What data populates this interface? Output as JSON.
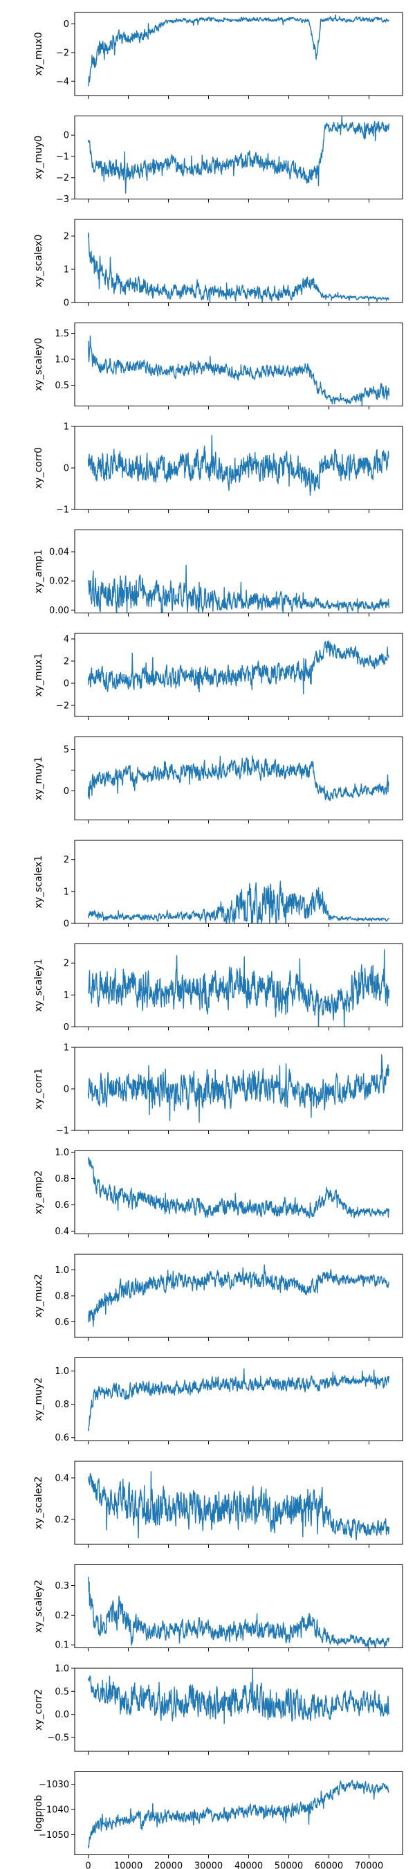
{
  "chart_data": {
    "type": "line",
    "layout": "vertical-stack",
    "shared_x": true,
    "line_color": "#1f77b4",
    "grid": false,
    "legend": "none",
    "x_range": [
      0,
      75000
    ],
    "x_ticks": [
      0,
      10000,
      20000,
      30000,
      40000,
      50000,
      60000,
      70000
    ],
    "x_tick_labels": [
      "0",
      "10000",
      "20000",
      "30000",
      "40000",
      "50000",
      "60000",
      "70000"
    ],
    "panels": [
      {
        "ylabel": "xy_mux0",
        "ylim": [
          -5,
          0.8
        ],
        "yticks": [
          -4,
          -2,
          0
        ],
        "ytick_labels": [
          "−4",
          "−2",
          "0"
        ],
        "x": [
          0,
          1000,
          3000,
          6000,
          10000,
          15000,
          20000,
          30000,
          40000,
          50000,
          55000,
          57000,
          58000,
          60000,
          65000,
          70000,
          75000
        ],
        "values": [
          -4.5,
          -2.5,
          -1.8,
          -1.2,
          -1.0,
          -0.6,
          0.2,
          0.3,
          0.3,
          0.3,
          0.2,
          -2.5,
          0.3,
          0.3,
          0.3,
          0.3,
          0.3
        ],
        "noise": [
          0.8,
          0.8,
          0.7,
          0.6,
          0.5,
          0.4,
          0.15,
          0.15,
          0.15,
          0.15,
          0.15,
          0.6,
          0.15,
          0.15,
          0.15,
          0.15,
          0.15
        ]
      },
      {
        "ylabel": "xy_muy0",
        "ylim": [
          -3,
          0.9
        ],
        "yticks": [
          -3,
          -2,
          -1,
          0
        ],
        "ytick_labels": [
          "−3",
          "−2",
          "−1",
          "0"
        ],
        "x": [
          0,
          2000,
          10000,
          20000,
          30000,
          40000,
          50000,
          56000,
          58000,
          59000,
          65000,
          70000,
          75000
        ],
        "values": [
          -0.5,
          -1.6,
          -1.7,
          -1.4,
          -1.5,
          -1.2,
          -1.6,
          -2.0,
          -1.5,
          0.4,
          0.4,
          0.3,
          0.4
        ],
        "noise": [
          0.6,
          0.4,
          0.4,
          0.4,
          0.4,
          0.4,
          0.4,
          0.4,
          0.4,
          0.2,
          0.2,
          0.4,
          0.3
        ]
      },
      {
        "ylabel": "xy_scalex0",
        "ylim": [
          0,
          2.5
        ],
        "yticks": [
          0,
          1,
          2
        ],
        "ytick_labels": [
          "0",
          "1",
          "2"
        ],
        "x": [
          0,
          1000,
          5000,
          10000,
          20000,
          30000,
          40000,
          50000,
          56000,
          58000,
          65000,
          75000
        ],
        "values": [
          1.8,
          1.2,
          0.7,
          0.5,
          0.35,
          0.3,
          0.3,
          0.3,
          0.6,
          0.2,
          0.15,
          0.12
        ],
        "noise": [
          0.4,
          0.3,
          0.3,
          0.25,
          0.2,
          0.2,
          0.2,
          0.2,
          0.25,
          0.08,
          0.05,
          0.05
        ]
      },
      {
        "ylabel": "xy_scaley0",
        "ylim": [
          0.1,
          1.7
        ],
        "yticks": [
          0.5,
          1.0,
          1.5
        ],
        "ytick_labels": [
          "0.5",
          "1.0",
          "1.5"
        ],
        "x": [
          0,
          2000,
          10000,
          20000,
          30000,
          40000,
          50000,
          55000,
          57000,
          60000,
          65000,
          70000,
          75000
        ],
        "values": [
          1.2,
          0.9,
          0.85,
          0.8,
          0.8,
          0.75,
          0.8,
          0.8,
          0.45,
          0.25,
          0.2,
          0.3,
          0.4
        ],
        "noise": [
          0.3,
          0.15,
          0.12,
          0.12,
          0.12,
          0.12,
          0.12,
          0.12,
          0.1,
          0.06,
          0.05,
          0.15,
          0.2
        ]
      },
      {
        "ylabel": "xy_corr0",
        "ylim": [
          -1,
          1
        ],
        "yticks": [
          -1,
          0,
          1
        ],
        "ytick_labels": [
          "−1",
          "0",
          "1"
        ],
        "x": [
          0,
          10000,
          20000,
          30000,
          35000,
          40000,
          50000,
          57000,
          60000,
          65000,
          70000,
          75000
        ],
        "values": [
          0.0,
          0.1,
          0.0,
          0.1,
          -0.2,
          0.1,
          0.0,
          -0.3,
          0.2,
          0.0,
          0.0,
          0.2
        ],
        "noise": [
          0.35,
          0.35,
          0.35,
          0.35,
          0.3,
          0.35,
          0.35,
          0.3,
          0.3,
          0.3,
          0.3,
          0.3
        ]
      },
      {
        "ylabel": "xy_amp1",
        "ylim": [
          -0.002,
          0.055
        ],
        "yticks": [
          0.0,
          0.02,
          0.04
        ],
        "ytick_labels": [
          "0.00",
          "0.02",
          "0.04"
        ],
        "x": [
          0,
          10000,
          20000,
          30000,
          40000,
          50000,
          60000,
          70000,
          75000
        ],
        "values": [
          0.012,
          0.012,
          0.01,
          0.008,
          0.006,
          0.005,
          0.003,
          0.003,
          0.004
        ],
        "noise": [
          0.012,
          0.012,
          0.01,
          0.008,
          0.006,
          0.005,
          0.003,
          0.003,
          0.004
        ]
      },
      {
        "ylabel": "xy_mux1",
        "ylim": [
          -3,
          4.5
        ],
        "yticks": [
          -2,
          0,
          2,
          4
        ],
        "ytick_labels": [
          "−2",
          "0",
          "2",
          "4"
        ],
        "x": [
          0,
          10000,
          20000,
          30000,
          40000,
          50000,
          55000,
          60000,
          63000,
          66000,
          70000,
          75000
        ],
        "values": [
          0.5,
          0.5,
          0.5,
          0.5,
          0.8,
          1.0,
          1.2,
          3.5,
          2.5,
          2.8,
          1.8,
          2.5
        ],
        "noise": [
          0.9,
          0.9,
          0.9,
          0.9,
          0.9,
          0.9,
          0.9,
          0.6,
          0.6,
          0.6,
          0.6,
          0.6
        ]
      },
      {
        "ylabel": "xy_muy1",
        "ylim": [
          -3.5,
          6.5
        ],
        "yticks": [
          0,
          2.5,
          5
        ],
        "ytick_labels": [
          "0",
          "",
          "5"
        ],
        "x": [
          0,
          2000,
          10000,
          20000,
          30000,
          40000,
          50000,
          56000,
          58000,
          62000,
          70000,
          75000
        ],
        "values": [
          0.0,
          1.0,
          2.0,
          2.3,
          2.5,
          2.8,
          2.6,
          2.5,
          -0.5,
          -0.2,
          0.0,
          0.3
        ],
        "noise": [
          1.2,
          1.0,
          1.0,
          1.0,
          1.0,
          1.1,
          1.0,
          1.0,
          0.8,
          0.6,
          0.6,
          0.7
        ]
      },
      {
        "ylabel": "xy_scalex1",
        "ylim": [
          0,
          2.6
        ],
        "yticks": [
          0,
          1,
          2
        ],
        "ytick_labels": [
          "0",
          "1",
          "2"
        ],
        "x": [
          0,
          5000,
          10000,
          20000,
          30000,
          35000,
          40000,
          45000,
          50000,
          55000,
          58000,
          60000,
          65000,
          75000
        ],
        "values": [
          0.3,
          0.2,
          0.2,
          0.2,
          0.25,
          0.4,
          0.6,
          0.7,
          0.5,
          0.4,
          0.8,
          0.2,
          0.15,
          0.12
        ],
        "noise": [
          0.15,
          0.1,
          0.1,
          0.1,
          0.15,
          0.4,
          0.6,
          0.7,
          0.5,
          0.4,
          0.5,
          0.1,
          0.05,
          0.05
        ]
      },
      {
        "ylabel": "xy_scaley1",
        "ylim": [
          0,
          2.6
        ],
        "yticks": [
          0,
          1,
          2
        ],
        "ytick_labels": [
          "0",
          "1",
          "2"
        ],
        "x": [
          0,
          10000,
          20000,
          30000,
          40000,
          50000,
          55000,
          60000,
          65000,
          70000,
          75000
        ],
        "values": [
          1.3,
          1.2,
          1.1,
          1.2,
          1.2,
          1.1,
          1.0,
          0.6,
          1.0,
          1.5,
          1.2
        ],
        "noise": [
          0.6,
          0.55,
          0.55,
          0.6,
          0.6,
          0.55,
          0.5,
          0.35,
          0.6,
          0.6,
          0.6
        ]
      },
      {
        "ylabel": "xy_corr1",
        "ylim": [
          -1,
          1
        ],
        "yticks": [
          -1,
          0,
          1
        ],
        "ytick_labels": [
          "−1",
          "0",
          "1"
        ],
        "x": [
          0,
          10000,
          20000,
          30000,
          40000,
          50000,
          57000,
          60000,
          65000,
          70000,
          75000
        ],
        "values": [
          0.0,
          0.0,
          0.05,
          0.0,
          0.05,
          0.0,
          -0.2,
          0.0,
          0.0,
          0.1,
          0.2
        ],
        "noise": [
          0.35,
          0.4,
          0.4,
          0.4,
          0.4,
          0.4,
          0.3,
          0.3,
          0.3,
          0.3,
          0.3
        ]
      },
      {
        "ylabel": "xy_amp2",
        "ylim": [
          0.38,
          1.01
        ],
        "yticks": [
          0.4,
          0.6,
          0.8,
          1.0
        ],
        "ytick_labels": [
          "0.4",
          "0.6",
          "0.8",
          "1.0"
        ],
        "x": [
          0,
          2000,
          5000,
          10000,
          20000,
          30000,
          40000,
          50000,
          56000,
          60000,
          65000,
          75000
        ],
        "values": [
          0.95,
          0.75,
          0.68,
          0.65,
          0.6,
          0.58,
          0.58,
          0.57,
          0.56,
          0.7,
          0.54,
          0.55
        ],
        "noise": [
          0.05,
          0.06,
          0.06,
          0.07,
          0.06,
          0.06,
          0.06,
          0.06,
          0.05,
          0.06,
          0.03,
          0.03
        ]
      },
      {
        "ylabel": "xy_mux2",
        "ylim": [
          0.48,
          1.12
        ],
        "yticks": [
          0.6,
          0.8,
          1.0
        ],
        "ytick_labels": [
          "0.6",
          "0.8",
          "1.0"
        ],
        "x": [
          0,
          2000,
          5000,
          8000,
          10000,
          20000,
          30000,
          40000,
          50000,
          55000,
          60000,
          65000,
          70000,
          75000
        ],
        "values": [
          0.6,
          0.7,
          0.78,
          0.82,
          0.86,
          0.9,
          0.92,
          0.93,
          0.9,
          0.85,
          0.95,
          0.92,
          0.93,
          0.9
        ],
        "noise": [
          0.06,
          0.06,
          0.06,
          0.08,
          0.07,
          0.06,
          0.06,
          0.06,
          0.06,
          0.05,
          0.05,
          0.04,
          0.04,
          0.04
        ]
      },
      {
        "ylabel": "xy_muy2",
        "ylim": [
          0.58,
          1.08
        ],
        "yticks": [
          0.6,
          0.8,
          1.0
        ],
        "ytick_labels": [
          "0.6",
          "0.8",
          "1.0"
        ],
        "x": [
          0,
          1000,
          3000,
          10000,
          20000,
          30000,
          40000,
          50000,
          60000,
          65000,
          70000,
          75000
        ],
        "values": [
          0.65,
          0.82,
          0.88,
          0.88,
          0.9,
          0.92,
          0.92,
          0.92,
          0.93,
          0.94,
          0.95,
          0.94
        ],
        "noise": [
          0.05,
          0.05,
          0.04,
          0.05,
          0.04,
          0.04,
          0.04,
          0.04,
          0.04,
          0.03,
          0.03,
          0.03
        ]
      },
      {
        "ylabel": "xy_scalex2",
        "ylim": [
          0.08,
          0.48
        ],
        "yticks": [
          0.2,
          0.4
        ],
        "ytick_labels": [
          "0.2",
          "0.4"
        ],
        "x": [
          0,
          2000,
          5000,
          10000,
          20000,
          30000,
          40000,
          50000,
          58000,
          60000,
          65000,
          70000,
          75000
        ],
        "values": [
          0.4,
          0.33,
          0.3,
          0.27,
          0.25,
          0.25,
          0.25,
          0.24,
          0.28,
          0.18,
          0.16,
          0.15,
          0.15
        ],
        "noise": [
          0.04,
          0.06,
          0.08,
          0.09,
          0.09,
          0.09,
          0.09,
          0.09,
          0.08,
          0.05,
          0.04,
          0.04,
          0.04
        ]
      },
      {
        "ylabel": "xy_scaley2",
        "ylim": [
          0.09,
          0.37
        ],
        "yticks": [
          0.1,
          0.2,
          0.3
        ],
        "ytick_labels": [
          "0.1",
          "0.2",
          "0.3"
        ],
        "x": [
          0,
          1000,
          3000,
          8000,
          10000,
          20000,
          30000,
          40000,
          50000,
          55000,
          60000,
          65000,
          70000,
          75000
        ],
        "values": [
          0.32,
          0.2,
          0.16,
          0.22,
          0.16,
          0.15,
          0.15,
          0.15,
          0.14,
          0.18,
          0.12,
          0.12,
          0.11,
          0.11
        ],
        "noise": [
          0.04,
          0.04,
          0.03,
          0.06,
          0.04,
          0.03,
          0.03,
          0.03,
          0.03,
          0.04,
          0.02,
          0.015,
          0.015,
          0.015
        ]
      },
      {
        "ylabel": "xy_corr2",
        "ylim": [
          -0.8,
          1.0
        ],
        "yticks": [
          -0.5,
          0.0,
          0.5,
          1.0
        ],
        "ytick_labels": [
          "−0.5",
          "0.0",
          "0.5",
          "1.0"
        ],
        "x": [
          0,
          2000,
          5000,
          10000,
          20000,
          30000,
          40000,
          50000,
          55000,
          60000,
          65000,
          70000,
          75000
        ],
        "values": [
          0.7,
          0.5,
          0.4,
          0.35,
          0.3,
          0.25,
          0.3,
          0.25,
          0.2,
          0.15,
          0.3,
          0.2,
          0.15
        ],
        "noise": [
          0.12,
          0.2,
          0.25,
          0.3,
          0.35,
          0.35,
          0.35,
          0.35,
          0.35,
          0.2,
          0.2,
          0.25,
          0.25
        ]
      },
      {
        "ylabel": "logprob",
        "ylim": [
          -1058,
          -1025
        ],
        "yticks": [
          -1050,
          -1040,
          -1030
        ],
        "ytick_labels": [
          "−1050",
          "−1040",
          "−1030"
        ],
        "x": [
          0,
          1000,
          3000,
          10000,
          20000,
          30000,
          40000,
          50000,
          55000,
          58000,
          60000,
          62000,
          65000,
          70000,
          75000
        ],
        "values": [
          -1055,
          -1048,
          -1045,
          -1044,
          -1043,
          -1042,
          -1041,
          -1040,
          -1040,
          -1037,
          -1034,
          -1032,
          -1030,
          -1031,
          -1032
        ],
        "noise": [
          1.5,
          2.5,
          2.5,
          2.5,
          2.5,
          2.5,
          2.5,
          2.5,
          2.5,
          2.5,
          2.5,
          2.5,
          2.0,
          2.0,
          2.0
        ]
      }
    ]
  }
}
